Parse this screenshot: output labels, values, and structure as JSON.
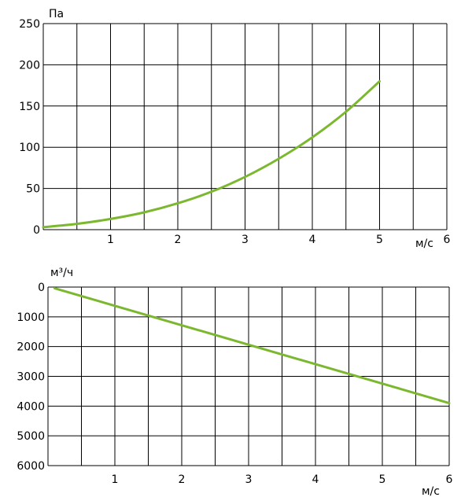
{
  "chart_data": [
    {
      "type": "line",
      "title": "",
      "xlabel": "м/с",
      "ylabel": "Па",
      "xlim": [
        0,
        6
      ],
      "ylim": [
        0,
        250
      ],
      "x_ticks": [
        "1",
        "2",
        "3",
        "4",
        "5",
        "6"
      ],
      "y_ticks": [
        "0",
        "50",
        "100",
        "150",
        "200",
        "250"
      ],
      "grid": true,
      "series": [
        {
          "color": "#7cb82f",
          "x": [
            0,
            0.5,
            1,
            1.5,
            2,
            2.5,
            3,
            3.5,
            4,
            4.5,
            5
          ],
          "y": [
            3,
            7,
            13,
            21,
            32,
            46,
            64,
            86,
            112,
            143,
            180
          ]
        }
      ]
    },
    {
      "type": "line",
      "title": "",
      "xlabel": "м/с",
      "ylabel": "м³/ч",
      "xlim": [
        0,
        6
      ],
      "ylim": [
        0,
        6000
      ],
      "y_inverted": true,
      "x_ticks": [
        "1",
        "2",
        "3",
        "4",
        "5",
        "6"
      ],
      "y_ticks": [
        "0",
        "1000",
        "2000",
        "3000",
        "4000",
        "5000",
        "6000"
      ],
      "grid": true,
      "series": [
        {
          "color": "#7cb82f",
          "x": [
            0.1,
            6
          ],
          "y": [
            40,
            3900
          ]
        }
      ]
    }
  ]
}
